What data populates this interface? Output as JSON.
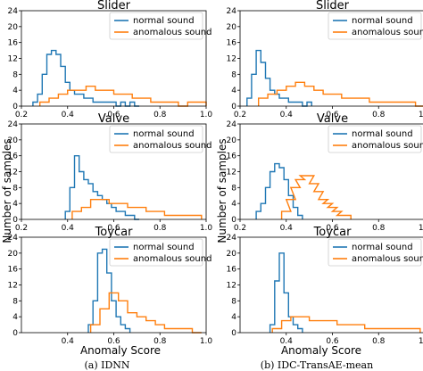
{
  "ylabel": "Number of samples",
  "xlabel": "Anomaly Score",
  "captions": [
    "(a) IDNN",
    "(b) IDC-TransAE-mean"
  ],
  "legend": [
    "normal sound",
    "anomalous sound"
  ],
  "colors": {
    "normal": "#1f77b4",
    "anomalous": "#ff7f0e"
  },
  "chart_data": [
    {
      "type": "histogram",
      "title": "Slider",
      "column": 0,
      "row": 0,
      "xlim": [
        0.2,
        1.0
      ],
      "ylim": [
        0,
        24
      ],
      "xticks": [
        "0.2",
        "0.4",
        "0.6",
        "0.8",
        "1.0"
      ],
      "yticks": [
        0,
        4,
        8,
        12,
        16,
        20,
        24
      ],
      "series": [
        {
          "name": "normal sound",
          "x": [
            0.26,
            0.28,
            0.3,
            0.32,
            0.34,
            0.36,
            0.38,
            0.4,
            0.42,
            0.44,
            0.46,
            0.48,
            0.5,
            0.52,
            0.54,
            0.56,
            0.58,
            0.6,
            0.62,
            0.64,
            0.66,
            0.68,
            0.7
          ],
          "y": [
            1,
            3,
            8,
            13,
            14,
            13,
            10,
            6,
            4,
            3,
            3,
            2,
            2,
            1,
            1,
            1,
            1,
            1,
            0,
            1,
            0,
            1,
            0
          ]
        },
        {
          "name": "anomalous sound",
          "x": [
            0.3,
            0.34,
            0.38,
            0.42,
            0.46,
            0.5,
            0.54,
            0.58,
            0.62,
            0.66,
            0.7,
            0.74,
            0.78,
            0.82,
            0.86,
            0.9,
            0.94,
            0.98
          ],
          "y": [
            1,
            2,
            3,
            4,
            4,
            5,
            4,
            4,
            3,
            3,
            2,
            2,
            1,
            1,
            1,
            0,
            1,
            1
          ]
        }
      ]
    },
    {
      "type": "histogram",
      "title": "Valve",
      "column": 0,
      "row": 1,
      "xlim": [
        0.2,
        1.0
      ],
      "ylim": [
        0,
        24
      ],
      "xticks": [
        "0.2",
        "0.4",
        "0.6",
        "0.8",
        "1.0"
      ],
      "yticks": [
        0,
        4,
        8,
        12,
        16,
        20,
        24
      ],
      "series": [
        {
          "name": "normal sound",
          "x": [
            0.4,
            0.42,
            0.44,
            0.46,
            0.48,
            0.5,
            0.52,
            0.54,
            0.56,
            0.58,
            0.6,
            0.62,
            0.64,
            0.66,
            0.68,
            0.7
          ],
          "y": [
            2,
            8,
            16,
            12,
            10,
            9,
            7,
            6,
            5,
            4,
            3,
            2,
            2,
            1,
            1,
            0
          ]
        },
        {
          "name": "anomalous sound",
          "x": [
            0.44,
            0.48,
            0.52,
            0.56,
            0.6,
            0.64,
            0.68,
            0.72,
            0.76,
            0.8,
            0.84,
            0.88,
            0.92,
            0.96
          ],
          "y": [
            2,
            3,
            5,
            5,
            4,
            4,
            3,
            3,
            2,
            2,
            1,
            1,
            1,
            1
          ]
        }
      ]
    },
    {
      "type": "histogram",
      "title": "Toycar",
      "column": 0,
      "row": 2,
      "xlim": [
        0.2,
        1.0
      ],
      "ylim": [
        0,
        24
      ],
      "xticks": [
        "0.4",
        "0.6",
        "0.8",
        "1.0"
      ],
      "yticks": [
        0,
        4,
        8,
        12,
        16,
        20,
        24
      ],
      "series": [
        {
          "name": "normal sound",
          "x": [
            0.5,
            0.52,
            0.54,
            0.56,
            0.58,
            0.6,
            0.62,
            0.64,
            0.66
          ],
          "y": [
            2,
            8,
            20,
            21,
            15,
            8,
            4,
            2,
            1
          ]
        },
        {
          "name": "anomalous sound",
          "x": [
            0.52,
            0.56,
            0.6,
            0.64,
            0.68,
            0.72,
            0.76,
            0.8,
            0.84,
            0.88,
            0.92,
            0.96
          ],
          "y": [
            2,
            6,
            10,
            8,
            5,
            4,
            3,
            2,
            1,
            1,
            1,
            0
          ]
        }
      ]
    },
    {
      "type": "histogram",
      "title": "Slider",
      "column": 1,
      "row": 0,
      "xlim": [
        0.2,
        1.0
      ],
      "ylim": [
        0,
        24
      ],
      "xticks": [
        "0.2",
        "0.4",
        "0.6",
        "0.8",
        "1.0"
      ],
      "yticks": [
        0,
        4,
        8,
        12,
        16,
        20,
        24
      ],
      "series": [
        {
          "name": "normal sound",
          "x": [
            0.24,
            0.26,
            0.28,
            0.3,
            0.32,
            0.34,
            0.36,
            0.38,
            0.4,
            0.42,
            0.44,
            0.46,
            0.48,
            0.5
          ],
          "y": [
            2,
            8,
            14,
            11,
            7,
            4,
            3,
            2,
            2,
            1,
            1,
            1,
            0,
            1
          ]
        },
        {
          "name": "anomalous sound",
          "x": [
            0.3,
            0.34,
            0.38,
            0.42,
            0.46,
            0.5,
            0.54,
            0.58,
            0.62,
            0.66,
            0.7,
            0.74,
            0.78,
            0.82,
            0.86,
            0.9,
            0.94,
            0.98
          ],
          "y": [
            2,
            3,
            4,
            5,
            6,
            5,
            4,
            3,
            3,
            2,
            2,
            2,
            1,
            1,
            1,
            1,
            1,
            0
          ]
        }
      ]
    },
    {
      "type": "histogram",
      "title": "Valve",
      "column": 1,
      "row": 1,
      "xlim": [
        0.2,
        1.0
      ],
      "ylim": [
        0,
        24
      ],
      "xticks": [
        "0.2",
        "0.4",
        "0.6",
        "0.8",
        "1.0"
      ],
      "yticks": [
        0,
        4,
        8,
        12,
        16,
        20,
        24
      ],
      "series": [
        {
          "name": "normal sound",
          "x": [
            0.28,
            0.3,
            0.32,
            0.34,
            0.36,
            0.38,
            0.4,
            0.42,
            0.44,
            0.46
          ],
          "y": [
            2,
            4,
            8,
            12,
            14,
            13,
            10,
            6,
            3,
            1
          ]
        },
        {
          "name": "anomalous sound",
          "x": [
            0.4,
            0.42,
            0.44,
            0.46,
            0.48,
            0.5,
            0.52,
            0.54,
            0.56,
            0.58,
            0.6,
            0.62,
            0.64,
            0.66
          ],
          "y": [
            2,
            5,
            8,
            10,
            11,
            11,
            9,
            7,
            5,
            4,
            3,
            2,
            1,
            1
          ]
        }
      ]
    },
    {
      "type": "histogram",
      "title": "Toycar",
      "column": 1,
      "row": 2,
      "xlim": [
        0.2,
        1.0
      ],
      "ylim": [
        0,
        24
      ],
      "xticks": [
        "0.4",
        "0.6",
        "0.8",
        "1.0"
      ],
      "yticks": [
        0,
        4,
        8,
        12,
        16,
        20,
        24
      ],
      "series": [
        {
          "name": "normal sound",
          "x": [
            0.34,
            0.36,
            0.38,
            0.4,
            0.42,
            0.44,
            0.46
          ],
          "y": [
            2,
            13,
            20,
            10,
            4,
            2,
            1
          ]
        },
        {
          "name": "anomalous sound",
          "x": [
            0.36,
            0.4,
            0.44,
            0.48,
            0.52,
            0.56,
            0.6,
            0.64,
            0.68,
            0.72,
            0.76,
            0.8,
            0.84,
            0.88,
            0.92,
            0.96
          ],
          "y": [
            1,
            3,
            4,
            4,
            3,
            3,
            3,
            2,
            2,
            2,
            1,
            1,
            1,
            1,
            1,
            1
          ]
        }
      ]
    }
  ]
}
